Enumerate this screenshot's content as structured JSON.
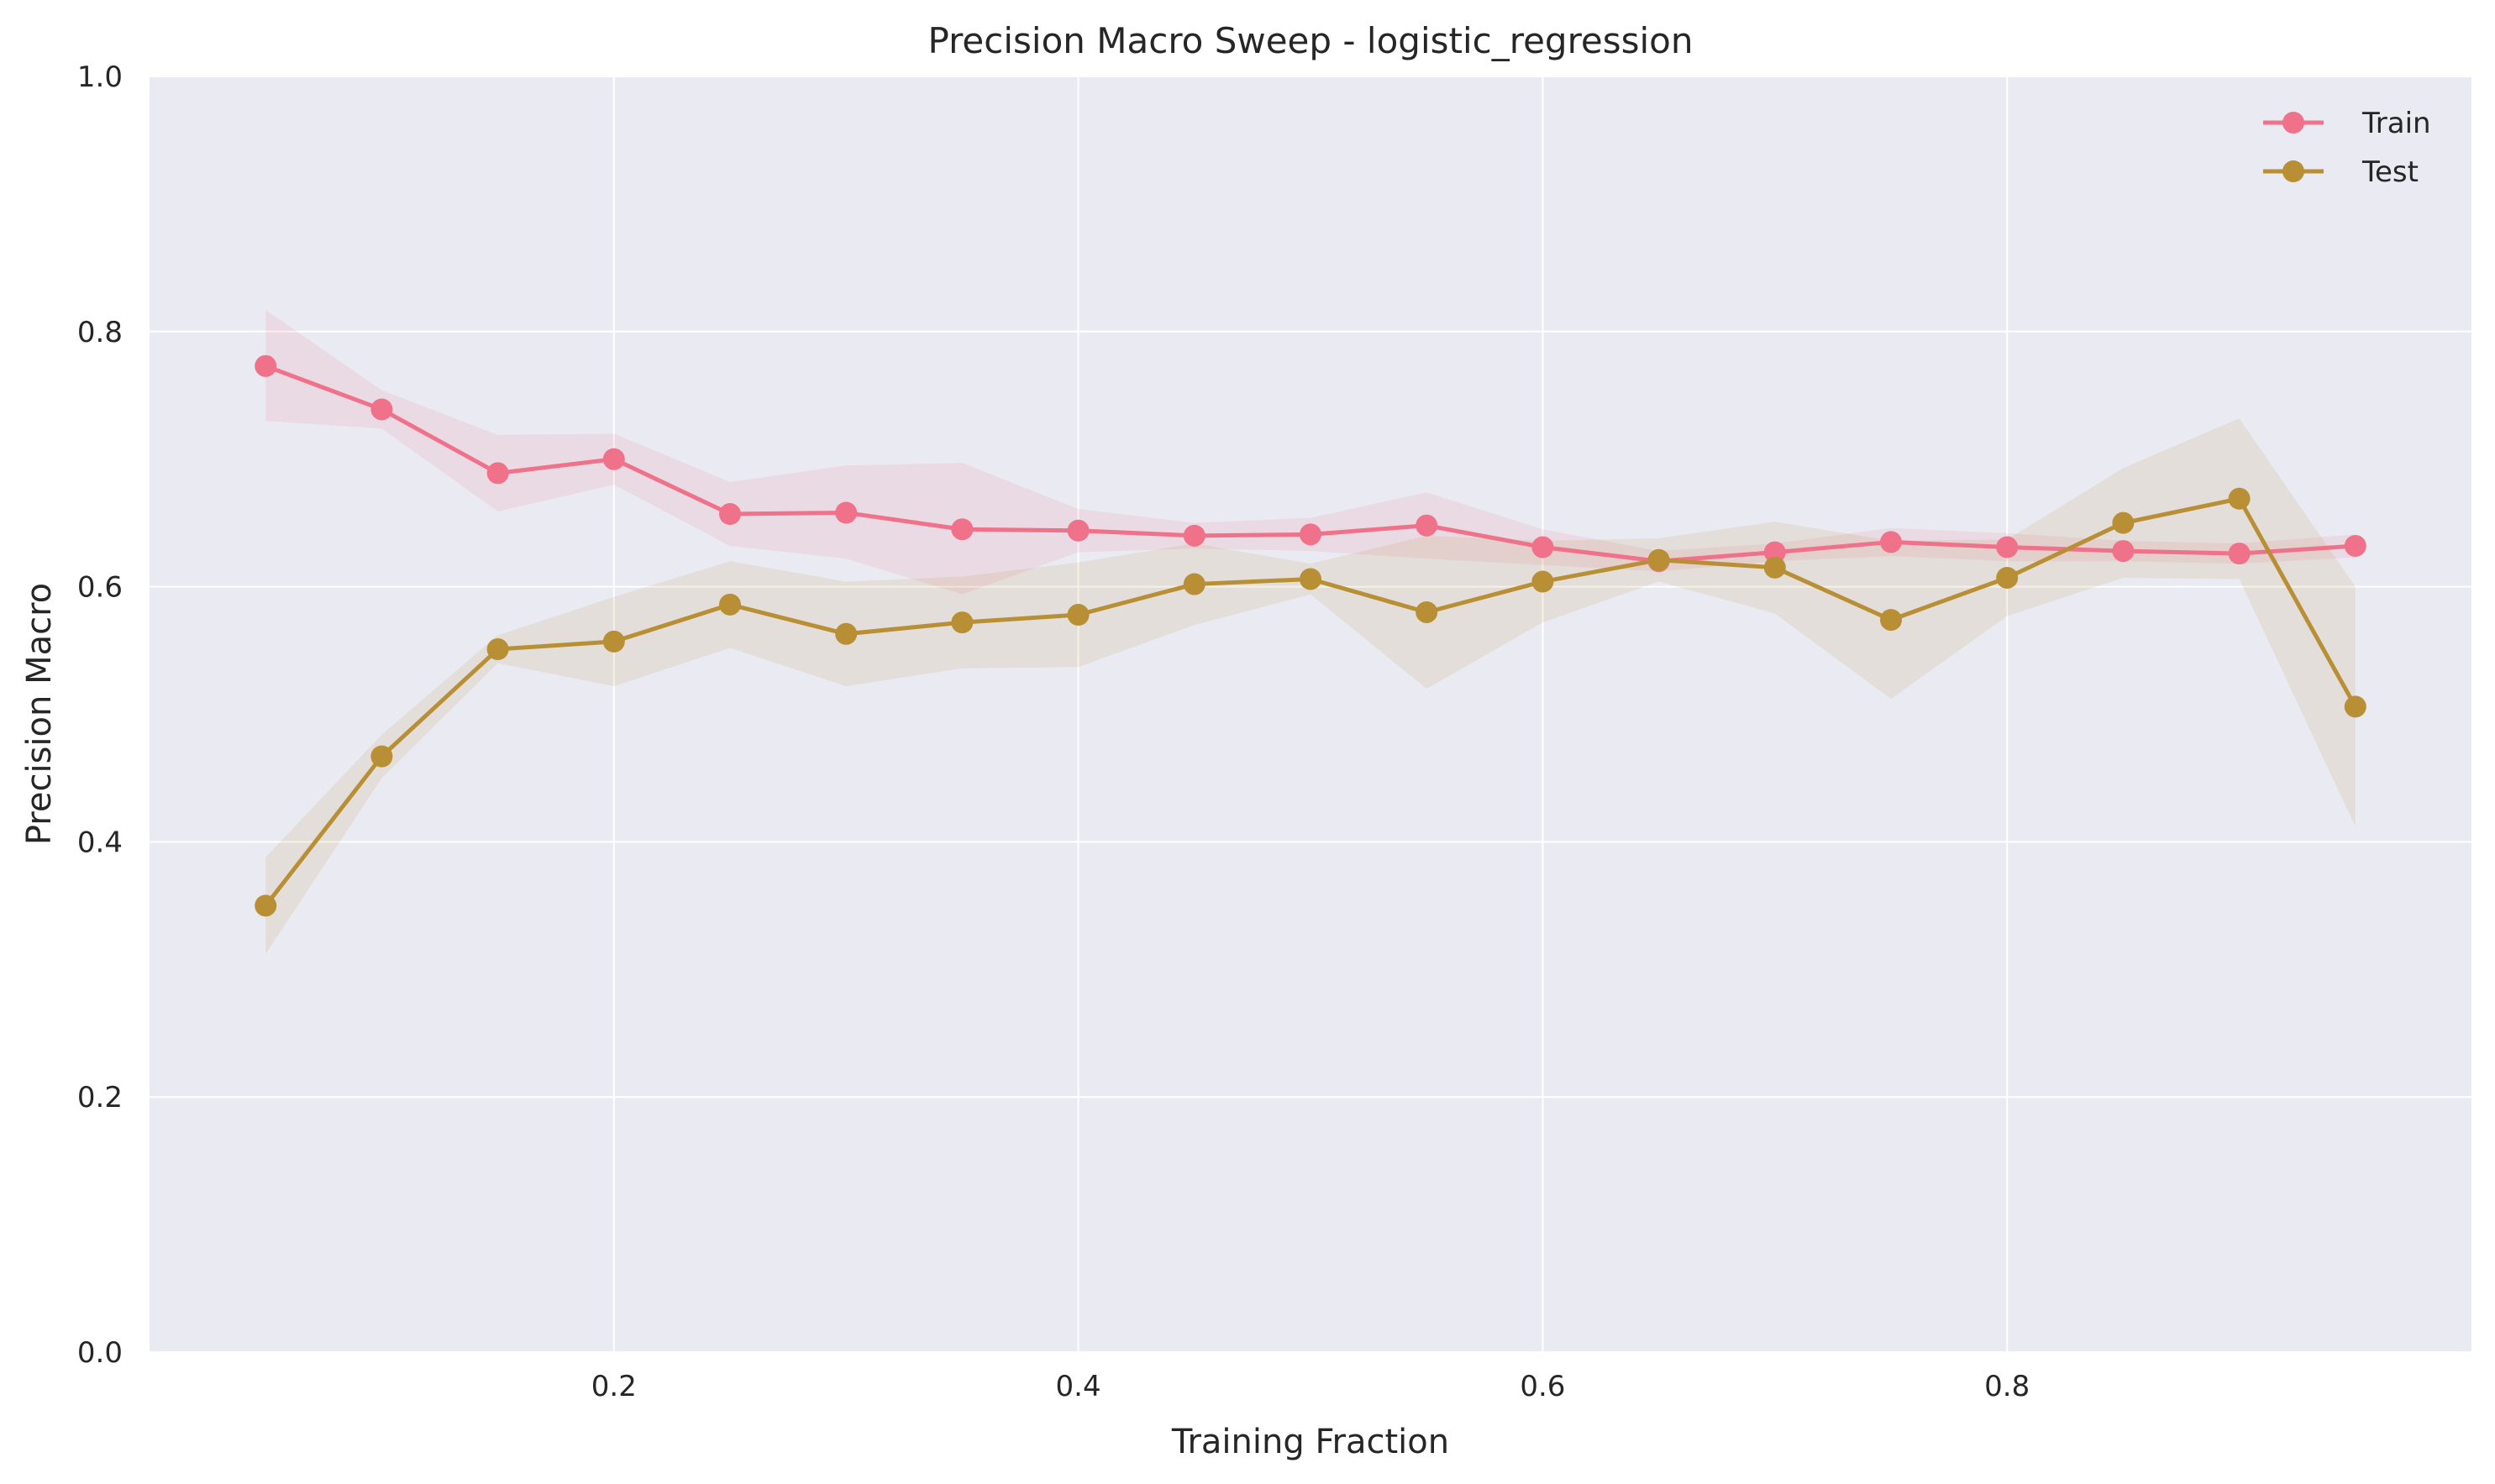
{
  "chart_data": {
    "type": "line",
    "title": "Precision Macro Sweep - logistic_regression",
    "xlabel": "Training Fraction",
    "ylabel": "Precision Macro",
    "xlim": [
      0.0,
      1.0
    ],
    "ylim": [
      0.0,
      1.0
    ],
    "xticks": [
      0.2,
      0.4,
      0.6,
      0.8
    ],
    "xtick_labels": [
      "0.2",
      "0.4",
      "0.6",
      "0.8"
    ],
    "yticks": [
      0.0,
      0.2,
      0.4,
      0.6,
      0.8,
      1.0
    ],
    "ytick_labels": [
      "0.0",
      "0.2",
      "0.4",
      "0.6",
      "0.8",
      "1.0"
    ],
    "grid": true,
    "legend_position": "top-right",
    "x": [
      0.05,
      0.1,
      0.15,
      0.2,
      0.25,
      0.3,
      0.35,
      0.4,
      0.45,
      0.5,
      0.55,
      0.6,
      0.65,
      0.7,
      0.75,
      0.8,
      0.85,
      0.9,
      0.95
    ],
    "series": [
      {
        "name": "Train",
        "color": "#f0718a",
        "values": [
          0.773,
          0.739,
          0.689,
          0.7,
          0.657,
          0.658,
          0.645,
          0.644,
          0.64,
          0.641,
          0.648,
          0.631,
          0.62,
          0.627,
          0.635,
          0.631,
          0.628,
          0.626,
          0.632
        ],
        "lower": [
          0.73,
          0.724,
          0.659,
          0.68,
          0.632,
          0.622,
          0.594,
          0.627,
          0.63,
          0.628,
          0.622,
          0.617,
          0.612,
          0.62,
          0.624,
          0.62,
          0.62,
          0.618,
          0.623
        ],
        "upper": [
          0.817,
          0.754,
          0.719,
          0.72,
          0.682,
          0.695,
          0.697,
          0.661,
          0.65,
          0.654,
          0.674,
          0.645,
          0.628,
          0.634,
          0.646,
          0.642,
          0.636,
          0.634,
          0.641
        ]
      },
      {
        "name": "Test",
        "color": "#b88f35",
        "values": [
          0.35,
          0.467,
          0.551,
          0.557,
          0.586,
          0.563,
          0.572,
          0.578,
          0.602,
          0.606,
          0.58,
          0.604,
          0.621,
          0.615,
          0.574,
          0.607,
          0.65,
          0.669,
          0.506
        ],
        "lower": [
          0.312,
          0.45,
          0.54,
          0.522,
          0.552,
          0.522,
          0.536,
          0.537,
          0.57,
          0.594,
          0.52,
          0.572,
          0.604,
          0.579,
          0.512,
          0.577,
          0.607,
          0.606,
          0.412
        ],
        "upper": [
          0.388,
          0.484,
          0.562,
          0.592,
          0.62,
          0.604,
          0.608,
          0.619,
          0.634,
          0.618,
          0.64,
          0.636,
          0.638,
          0.651,
          0.636,
          0.637,
          0.693,
          0.732,
          0.6
        ]
      }
    ]
  }
}
